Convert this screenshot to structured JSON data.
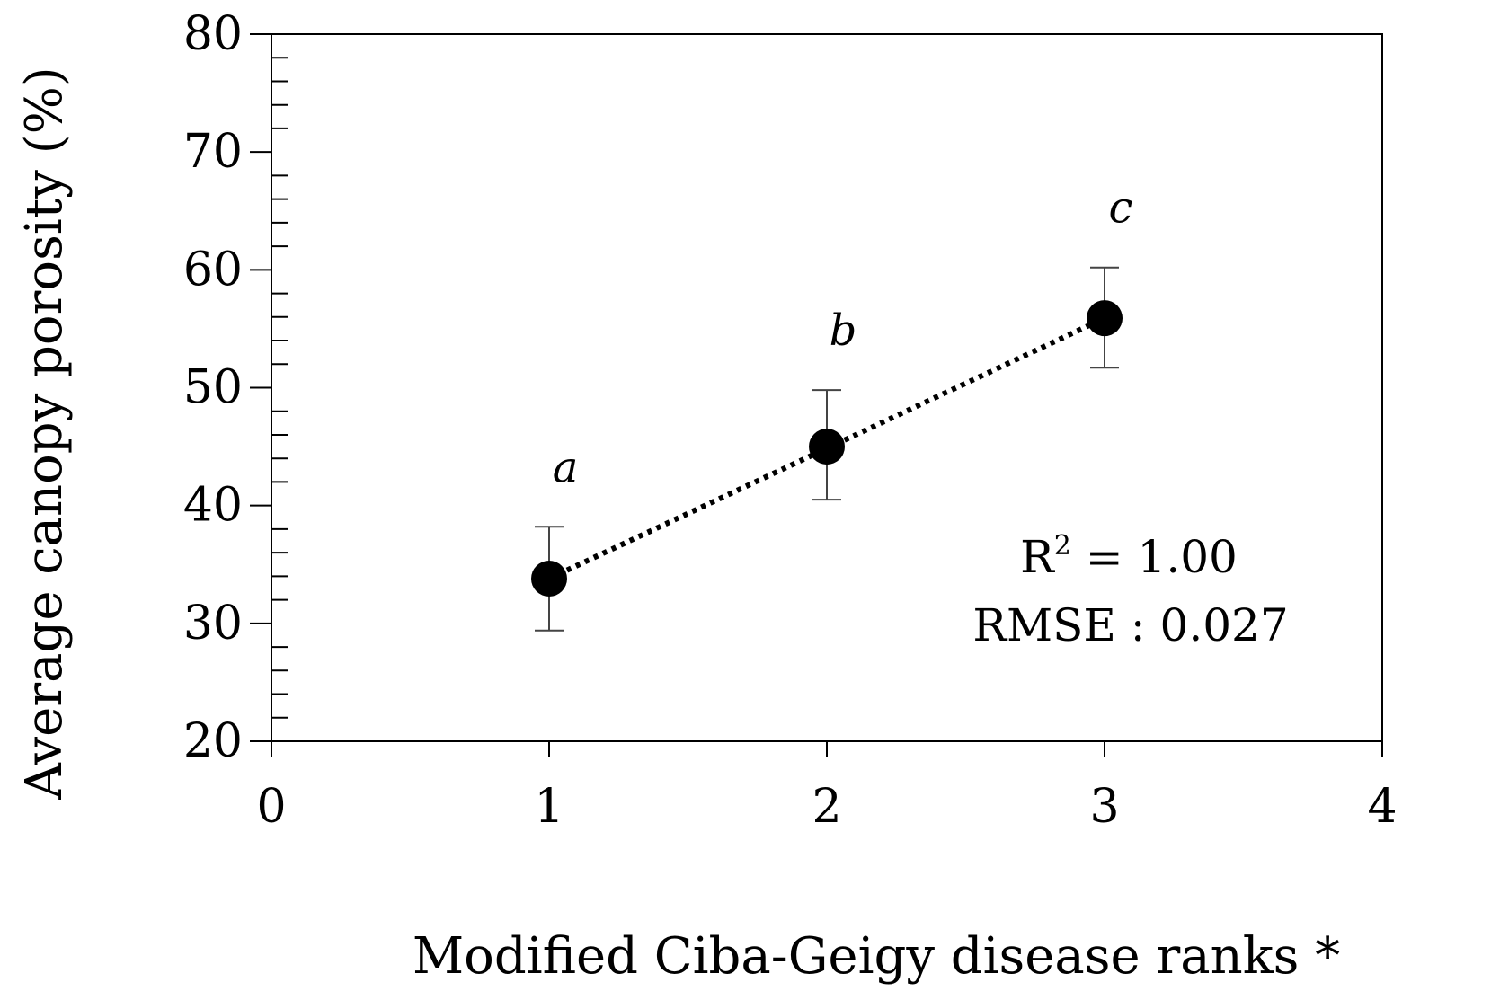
{
  "chart_data": {
    "type": "scatter",
    "title": "",
    "xlabel": "Modified Ciba-Geigy disease ranks *",
    "ylabel": "Average canopy porosity (%)",
    "xlim": [
      0,
      4
    ],
    "ylim": [
      20,
      80
    ],
    "xticks": [
      0,
      1,
      2,
      3,
      4
    ],
    "xtick_labels": [
      "0",
      "1",
      "2",
      "3",
      "4"
    ],
    "yticks": [
      20,
      30,
      40,
      50,
      60,
      70,
      80
    ],
    "ytick_labels": [
      "20",
      "30",
      "40",
      "50",
      "60",
      "70",
      "80"
    ],
    "y_minor_step": 2,
    "grid": false,
    "series": [
      {
        "name": "Average canopy porosity",
        "x": [
          1,
          2,
          3
        ],
        "y": [
          33.8,
          45.0,
          55.9
        ],
        "error_low": [
          29.4,
          40.5,
          51.7
        ],
        "error_high": [
          38.2,
          49.8,
          60.2
        ],
        "significance_letters": [
          "a",
          "b",
          "c"
        ],
        "marker_color": "#000000"
      }
    ],
    "trendline": {
      "style": "dotted",
      "x": [
        1,
        3
      ],
      "y": [
        33.8,
        55.9
      ],
      "color": "#000000"
    },
    "annotations": {
      "r2_prefix": "R",
      "r2_sup": "2",
      "r2_suffix": " = 1.00",
      "rmse": "RMSE : 0.027"
    }
  }
}
